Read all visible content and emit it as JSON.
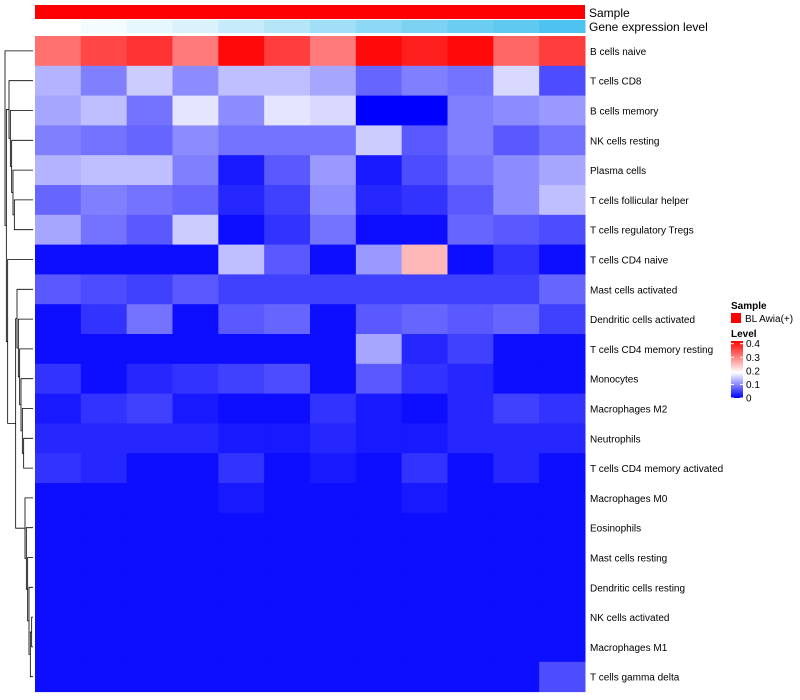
{
  "chart_data": {
    "type": "heatmap",
    "annotations": {
      "sample_label": "Sample",
      "expression_label": "Gene expression level"
    },
    "rows": [
      "B cells naive",
      "T cells CD8",
      "B cells memory",
      "NK cells resting",
      "Plasma cells",
      "T cells follicular helper",
      "T cells regulatory  Tregs",
      "T cells CD4 naive",
      "Mast cells activated",
      "Dendritic cells activated",
      "T cells CD4 memory resting",
      "Monocytes",
      "Macrophages M2",
      "Neutrophils",
      "T cells CD4 memory activated",
      "Macrophages M0",
      "Eosinophils",
      "Mast cells resting",
      "Dendritic cells resting",
      "NK cells activated",
      "Macrophages M1",
      "T cells gamma delta"
    ],
    "columns": 12,
    "values": [
      [
        0.34,
        0.38,
        0.4,
        0.33,
        0.44,
        0.39,
        0.33,
        0.44,
        0.42,
        0.44,
        0.35,
        0.39
      ],
      [
        0.14,
        0.1,
        0.16,
        0.11,
        0.15,
        0.15,
        0.13,
        0.08,
        0.1,
        0.09,
        0.17,
        0.06
      ],
      [
        0.13,
        0.15,
        0.09,
        0.18,
        0.11,
        0.18,
        0.17,
        0.0,
        0.0,
        0.1,
        0.11,
        0.12
      ],
      [
        0.1,
        0.09,
        0.08,
        0.11,
        0.09,
        0.09,
        0.09,
        0.16,
        0.07,
        0.1,
        0.07,
        0.09
      ],
      [
        0.14,
        0.15,
        0.15,
        0.1,
        0.02,
        0.07,
        0.12,
        0.02,
        0.06,
        0.09,
        0.11,
        0.13
      ],
      [
        0.08,
        0.1,
        0.09,
        0.08,
        0.03,
        0.05,
        0.11,
        0.03,
        0.04,
        0.07,
        0.11,
        0.15
      ],
      [
        0.13,
        0.09,
        0.07,
        0.16,
        0.01,
        0.04,
        0.09,
        0.01,
        0.01,
        0.08,
        0.07,
        0.06
      ],
      [
        0.01,
        0.01,
        0.01,
        0.01,
        0.15,
        0.07,
        0.01,
        0.12,
        0.27,
        0.01,
        0.04,
        0.01
      ],
      [
        0.07,
        0.06,
        0.05,
        0.07,
        0.05,
        0.05,
        0.05,
        0.05,
        0.05,
        0.05,
        0.05,
        0.08
      ],
      [
        0.01,
        0.04,
        0.09,
        0.01,
        0.07,
        0.08,
        0.01,
        0.07,
        0.08,
        0.07,
        0.08,
        0.05
      ],
      [
        0.01,
        0.01,
        0.01,
        0.01,
        0.01,
        0.01,
        0.01,
        0.13,
        0.03,
        0.05,
        0.01,
        0.01
      ],
      [
        0.04,
        0.01,
        0.03,
        0.04,
        0.05,
        0.06,
        0.01,
        0.07,
        0.04,
        0.03,
        0.01,
        0.01
      ],
      [
        0.02,
        0.04,
        0.05,
        0.02,
        0.01,
        0.01,
        0.04,
        0.02,
        0.01,
        0.03,
        0.05,
        0.04
      ],
      [
        0.03,
        0.03,
        0.03,
        0.03,
        0.02,
        0.02,
        0.03,
        0.02,
        0.02,
        0.03,
        0.03,
        0.03
      ],
      [
        0.04,
        0.03,
        0.01,
        0.01,
        0.04,
        0.01,
        0.02,
        0.01,
        0.04,
        0.01,
        0.03,
        0.01
      ],
      [
        0.01,
        0.01,
        0.01,
        0.01,
        0.02,
        0.01,
        0.01,
        0.01,
        0.02,
        0.01,
        0.01,
        0.01
      ],
      [
        0.01,
        0.01,
        0.01,
        0.01,
        0.01,
        0.01,
        0.01,
        0.01,
        0.01,
        0.01,
        0.01,
        0.01
      ],
      [
        0.01,
        0.01,
        0.01,
        0.01,
        0.01,
        0.01,
        0.01,
        0.01,
        0.01,
        0.01,
        0.01,
        0.01
      ],
      [
        0.01,
        0.01,
        0.01,
        0.01,
        0.01,
        0.01,
        0.01,
        0.01,
        0.01,
        0.01,
        0.01,
        0.01
      ],
      [
        0.01,
        0.01,
        0.01,
        0.01,
        0.01,
        0.01,
        0.01,
        0.01,
        0.01,
        0.01,
        0.01,
        0.01
      ],
      [
        0.01,
        0.01,
        0.01,
        0.01,
        0.01,
        0.01,
        0.01,
        0.01,
        0.01,
        0.01,
        0.01,
        0.01
      ],
      [
        0.01,
        0.01,
        0.01,
        0.01,
        0.01,
        0.01,
        0.01,
        0.01,
        0.01,
        0.01,
        0.01,
        0.06
      ]
    ],
    "expression_annotation": [
      0.0,
      0.03,
      0.06,
      0.09,
      0.14,
      0.18,
      0.23,
      0.28,
      0.32,
      0.36,
      0.39,
      0.43
    ],
    "color_scale": {
      "low": "#0000ff",
      "mid": "#ffffff",
      "high": "#ff0000",
      "mid_value": 0.2,
      "max_value": 0.45
    },
    "expression_scale": {
      "low": "#ffffff",
      "high": "#4fc3ef"
    },
    "legend": {
      "sample_title": "Sample",
      "sample_entry": "BL Awia(+)",
      "sample_color": "#ff0000",
      "level_title": "Level",
      "level_ticks": [
        "0.4",
        "0.3",
        "0.2",
        "0.1",
        "0"
      ],
      "level_tick_values": [
        0.4,
        0.3,
        0.2,
        0.1,
        0
      ]
    },
    "dendrogram": {
      "merges": [
        [
          19,
          20
        ],
        [
          -1,
          21
        ],
        [
          18,
          -2
        ],
        [
          17,
          -3
        ],
        [
          16,
          -4
        ],
        [
          15,
          -5
        ],
        [
          13,
          14
        ],
        [
          12,
          -7
        ],
        [
          11,
          -8
        ],
        [
          10,
          -9
        ],
        [
          9,
          -10
        ],
        [
          8,
          -11
        ],
        [
          -6,
          -12
        ],
        [
          5,
          6
        ],
        [
          4,
          -14
        ],
        [
          3,
          -15
        ],
        [
          2,
          -16
        ],
        [
          1,
          -17
        ],
        [
          7,
          -13
        ],
        [
          -18,
          -19
        ],
        [
          0,
          -20
        ]
      ]
    }
  }
}
